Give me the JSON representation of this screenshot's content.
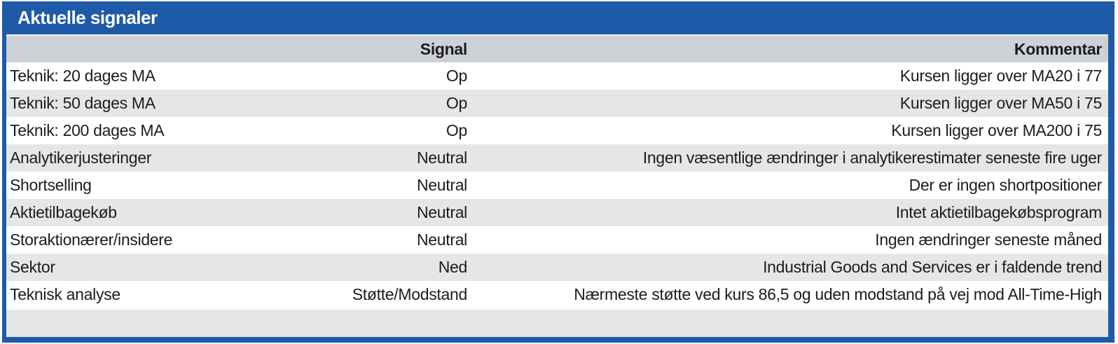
{
  "panel": {
    "title": "Aktuelle signaler"
  },
  "table": {
    "columns": {
      "signal": "Signal",
      "comment": "Kommentar"
    },
    "rows": [
      {
        "label": "Teknik: 20 dages MA",
        "signal": "Op",
        "comment": "Kursen ligger over MA20 i 77"
      },
      {
        "label": "Teknik: 50 dages MA",
        "signal": "Op",
        "comment": "Kursen ligger over MA50 i 75"
      },
      {
        "label": "Teknik: 200 dages MA",
        "signal": "Op",
        "comment": "Kursen ligger over MA200 i 75"
      },
      {
        "label": "Analytikerjusteringer",
        "signal": "Neutral",
        "comment": "Ingen væsentlige ændringer i analytikerestimater seneste fire uger"
      },
      {
        "label": "Shortselling",
        "signal": "Neutral",
        "comment": "Der er ingen shortpositioner"
      },
      {
        "label": "Aktietilbagekøb",
        "signal": "Neutral",
        "comment": "Intet aktietilbagekøbsprogram"
      },
      {
        "label": "Storaktionærer/insidere",
        "signal": "Neutral",
        "comment": "Ingen ændringer seneste måned"
      },
      {
        "label": "Sektor",
        "signal": "Ned",
        "comment": "Industrial Goods and Services er i faldende trend"
      },
      {
        "label": "Teknisk analyse",
        "signal": "Støtte/Modstand",
        "comment": "Nærmeste støtte ved kurs 86,5 og uden modstand på vej mod All-Time-High"
      }
    ]
  },
  "colors": {
    "accent_blue": "#1e5aa8",
    "header_row_bg": "#ced1d8",
    "alt_row_bg": "#e6e6e7",
    "text": "#1c1c1e"
  }
}
